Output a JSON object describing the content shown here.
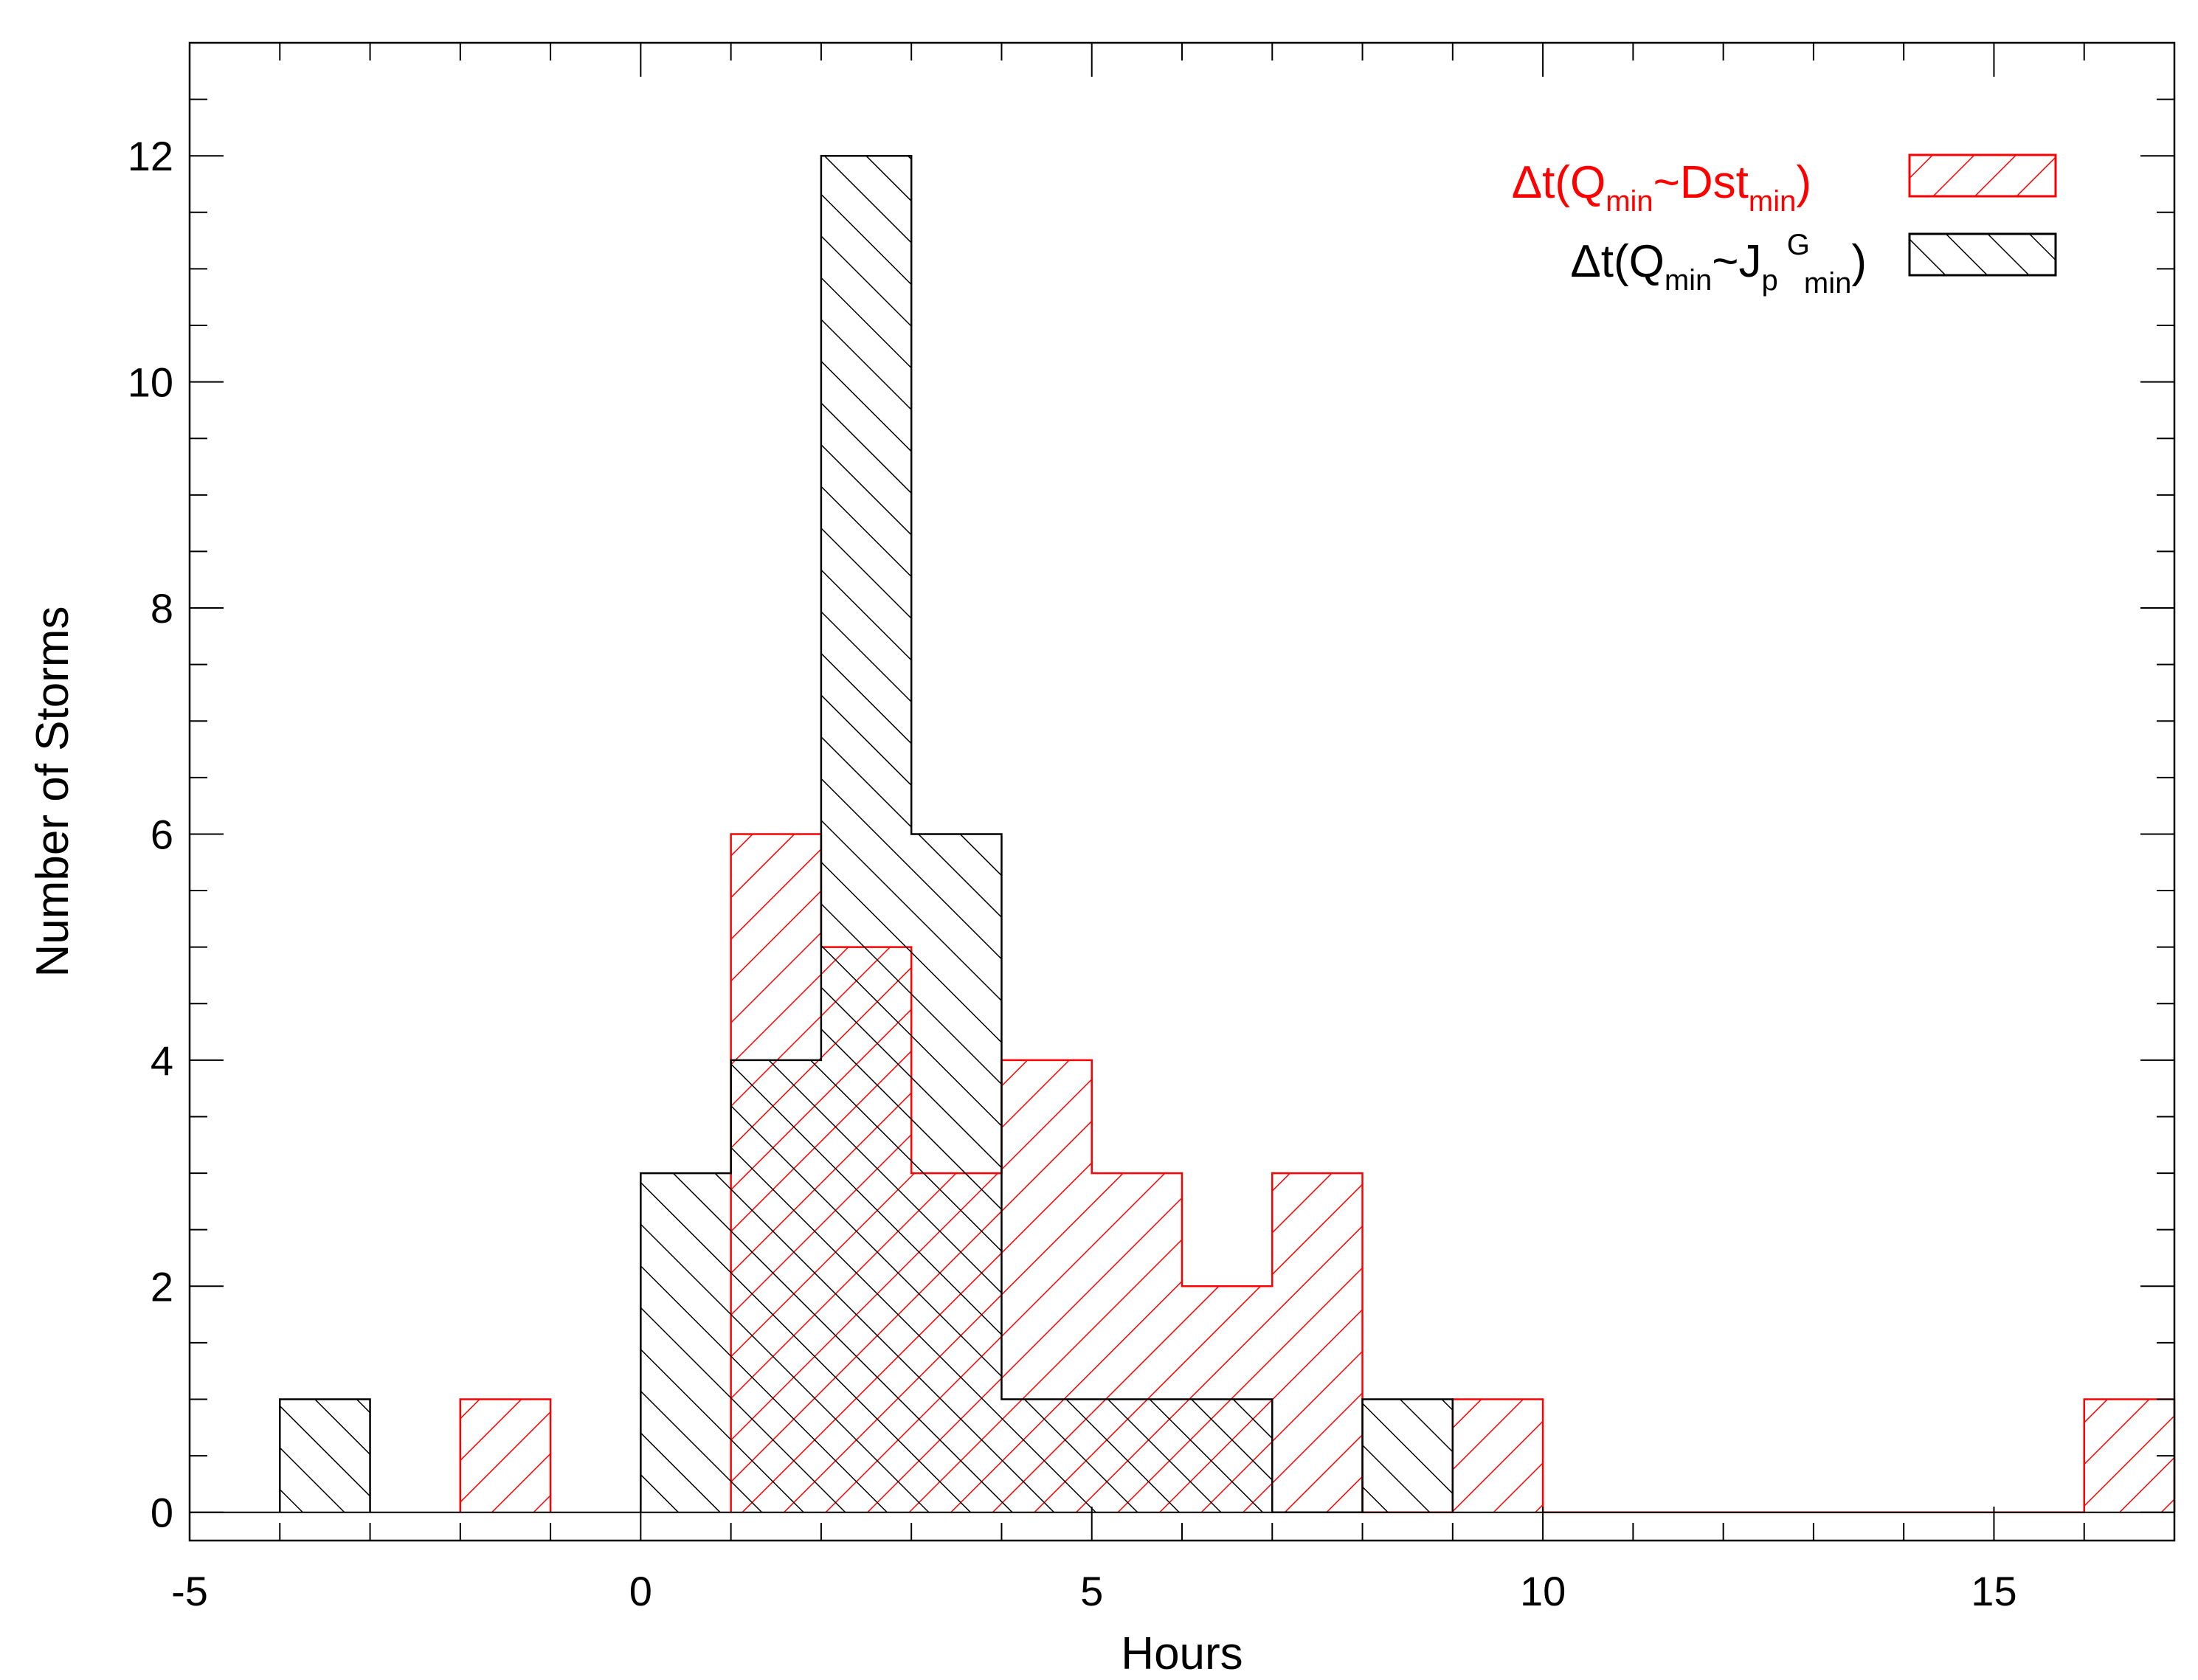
{
  "chart_data": {
    "type": "bar",
    "subtype": "histogram",
    "xlabel": "Hours",
    "ylabel": "Number of Storms",
    "xlim": [
      -5,
      17
    ],
    "ylim": [
      -0.25,
      13
    ],
    "xticks": [
      -5,
      0,
      5,
      10,
      15
    ],
    "yticks": [
      0,
      2,
      4,
      6,
      8,
      10,
      12
    ],
    "grid": false,
    "bin_width": 1,
    "series": [
      {
        "name": "Δt(Qmin~Dstmin)",
        "color": "#ff0000",
        "hatch": "backslash",
        "bins": [
          {
            "start": -2,
            "value": 1
          },
          {
            "start": 1,
            "value": 6
          },
          {
            "start": 2,
            "value": 5
          },
          {
            "start": 3,
            "value": 3
          },
          {
            "start": 4,
            "value": 4
          },
          {
            "start": 5,
            "value": 3
          },
          {
            "start": 6,
            "value": 2
          },
          {
            "start": 7,
            "value": 3
          },
          {
            "start": 8,
            "value": 0
          },
          {
            "start": 9,
            "value": 1
          },
          {
            "start": 10,
            "value": 0
          },
          {
            "start": 11,
            "value": 0
          },
          {
            "start": 12,
            "value": 0
          },
          {
            "start": 13,
            "value": 0
          },
          {
            "start": 14,
            "value": 0
          },
          {
            "start": 15,
            "value": 0
          },
          {
            "start": 16,
            "value": 1
          }
        ]
      },
      {
        "name": "Δt(Qmin~JpGmin)",
        "color": "#000000",
        "hatch": "slash",
        "bins": [
          {
            "start": -4,
            "value": 1
          },
          {
            "start": 0,
            "value": 3
          },
          {
            "start": 1,
            "value": 4
          },
          {
            "start": 2,
            "value": 12
          },
          {
            "start": 3,
            "value": 6
          },
          {
            "start": 4,
            "value": 1
          },
          {
            "start": 5,
            "value": 1
          },
          {
            "start": 6,
            "value": 1
          },
          {
            "start": 7,
            "value": 0
          },
          {
            "start": 8,
            "value": 1
          }
        ]
      }
    ],
    "legend": {
      "position": "top-right",
      "entries": [
        {
          "base": "Δt(Q",
          "sub1": "min",
          "mid": "~Dst",
          "sup": "",
          "sub2": "min",
          "close": ")",
          "color": "#ff0000"
        },
        {
          "base": "Δt(Q",
          "sub1": "min",
          "mid": "~J",
          "midsub": "p",
          "sup": "G",
          "sub2": "min",
          "close": ")",
          "color": "#000000"
        }
      ]
    }
  }
}
